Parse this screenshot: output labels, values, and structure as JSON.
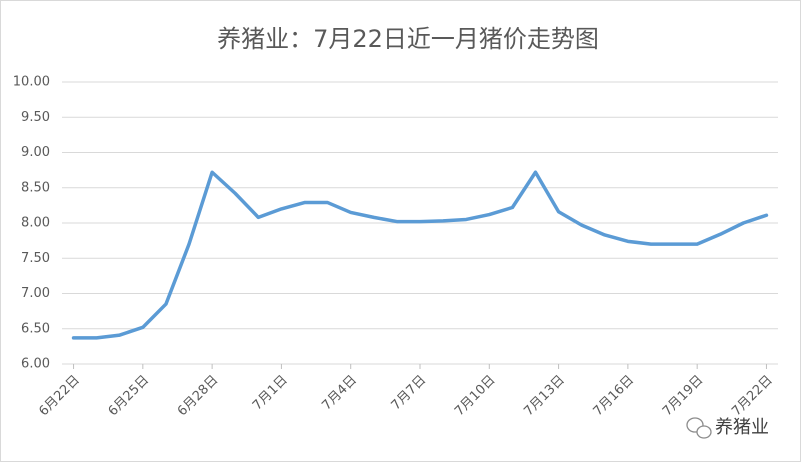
{
  "chart_data": {
    "type": "line",
    "title": "养猪业：7月22日近一月猪价走势图",
    "categories": [
      "6月22日",
      null,
      null,
      "6月25日",
      null,
      null,
      "6月28日",
      null,
      null,
      "7月1日",
      null,
      null,
      "7月4日",
      null,
      null,
      "7月7日",
      null,
      null,
      "7月10日",
      null,
      null,
      "7月13日",
      null,
      null,
      "7月16日",
      null,
      null,
      "7月19日",
      null,
      null,
      "7月22日"
    ],
    "series": [
      {
        "color": "#5b9bd5",
        "values": [
          6.37,
          6.37,
          6.41,
          6.52,
          6.85,
          7.7,
          8.72,
          8.42,
          8.08,
          8.2,
          8.29,
          8.29,
          8.15,
          8.08,
          8.02,
          8.02,
          8.03,
          8.05,
          8.12,
          8.22,
          8.72,
          8.16,
          7.97,
          7.83,
          7.74,
          7.7,
          7.7,
          7.7,
          7.84,
          8.0,
          8.11
        ]
      }
    ],
    "ylim": [
      6,
      10
    ],
    "yticks": [
      {
        "value": 6,
        "label": "6.00"
      },
      {
        "value": 6.5,
        "label": "6.50"
      },
      {
        "value": 7,
        "label": "7.00"
      },
      {
        "value": 7.5,
        "label": "7.50"
      },
      {
        "value": 8,
        "label": "8.00"
      },
      {
        "value": 8.5,
        "label": "8.50"
      },
      {
        "value": 9,
        "label": "9.00"
      },
      {
        "value": 9.5,
        "label": "9.50"
      },
      {
        "value": 10,
        "label": "10.00"
      }
    ],
    "grid": true
  },
  "watermark": "养猪业"
}
